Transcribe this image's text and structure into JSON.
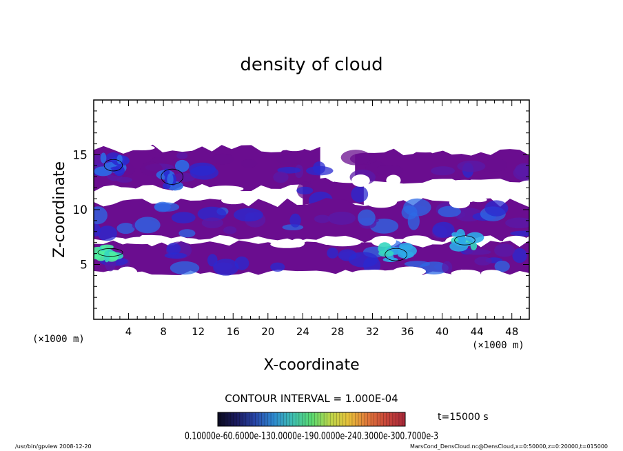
{
  "chart_data": {
    "type": "heatmap",
    "title": "density of cloud",
    "xlabel": "X-coordinate",
    "ylabel": "Z-coordinate",
    "x_unit_label": "(×1000 m)",
    "y_unit_label": "(×1000 m)",
    "xlim": [
      0,
      50
    ],
    "ylim": [
      0,
      20
    ],
    "xticks": [
      4,
      8,
      12,
      16,
      20,
      24,
      28,
      32,
      36,
      40,
      44,
      48
    ],
    "yticks": [
      5,
      10,
      15
    ],
    "grid": false,
    "colormap": [
      "#6a0d8f",
      "#5a1aa8",
      "#2a2ad0",
      "#2e6ae6",
      "#2fa8e8",
      "#36d6c0",
      "#4ff0a0"
    ],
    "contour_interval_text": "CONTOUR INTERVAL = 1.000E-04",
    "colorbar_text": "0.10000e-60.6000e-130.0000e-190.0000e-240.3000e-300.7000e-3",
    "colorbar_stops": [
      "#0a0a1e",
      "#1b1b5e",
      "#2846a8",
      "#2e8ad0",
      "#3fbfb0",
      "#58d870",
      "#bcd64a",
      "#e8c03a",
      "#e0763a",
      "#c8463a",
      "#a8283a"
    ],
    "time_text": "t=15000 s",
    "cloud_regions": [
      {
        "band": "upper",
        "x": [
          0,
          26
        ],
        "z": [
          11.8,
          15.8
        ],
        "level": 1
      },
      {
        "band": "upper",
        "x": [
          24,
          31
        ],
        "z": [
          10.4,
          12.8
        ],
        "level": 1
      },
      {
        "band": "upper",
        "x": [
          30,
          50
        ],
        "z": [
          12.5,
          15.4
        ],
        "level": 1
      },
      {
        "band": "middle",
        "x": [
          0,
          50
        ],
        "z": [
          7.2,
          10.8
        ],
        "level": 2
      },
      {
        "band": "lower",
        "x": [
          0,
          50
        ],
        "z": [
          4.2,
          7.0
        ],
        "level": 2
      },
      {
        "band": "core",
        "x": [
          0.2,
          3.6
        ],
        "z": [
          5.6,
          6.6
        ],
        "level": 6
      },
      {
        "band": "core",
        "x": [
          33.2,
          36.2
        ],
        "z": [
          5.1,
          6.7
        ],
        "level": 5
      },
      {
        "band": "core",
        "x": [
          41.2,
          44.0
        ],
        "z": [
          6.6,
          7.8
        ],
        "level": 5
      },
      {
        "band": "core",
        "x": [
          7.5,
          10.5
        ],
        "z": [
          12.0,
          14.0
        ],
        "level": 3
      },
      {
        "band": "core",
        "x": [
          1.0,
          3.5
        ],
        "z": [
          13.3,
          14.8
        ],
        "level": 3
      }
    ]
  },
  "footer": {
    "left": "/usr/bin/gpview  2008-12-20",
    "right": "MarsCond_DensCloud.nc@DensCloud,x=0:50000,z=0:20000,t=015000"
  }
}
